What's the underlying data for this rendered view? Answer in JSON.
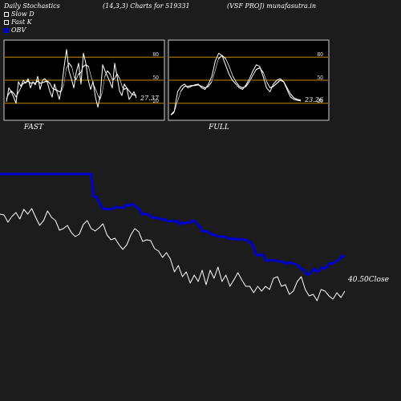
{
  "header": {
    "title": "Daily Stochastics",
    "params": "(14,3,3) Charts for 519331",
    "symbol": "(VSF PROJ) munafasutra.in"
  },
  "legend": [
    {
      "label": "Slow  D",
      "icon": "open-square",
      "color": "#ffffff"
    },
    {
      "label": "Fast K",
      "icon": "open-square",
      "color": "#ffffff"
    },
    {
      "label": "OBV",
      "icon": "filled-square",
      "color": "#0000cc"
    }
  ],
  "colors": {
    "background": "#1c1c1c",
    "panel": "#000000",
    "gridline": "#c88a00",
    "price_line": "#ffffff",
    "obv_line": "#0000cc"
  },
  "panels": {
    "fast": {
      "label": "FAST",
      "last_value": "27.37",
      "ticks": [
        "80",
        "50",
        "20"
      ]
    },
    "full": {
      "label": "FULL",
      "last_value": "23.26",
      "ticks": [
        "80",
        "50",
        "20"
      ]
    }
  },
  "close_label": "40.50Close",
  "chart_data": [
    {
      "type": "line",
      "name": "FAST",
      "ylim": [
        0,
        100
      ],
      "gridlines": [
        80,
        50,
        20
      ],
      "series": [
        {
          "name": "Fast K",
          "values": [
            22,
            40,
            35,
            28,
            20,
            48,
            42,
            50,
            46,
            52,
            40,
            48,
            44,
            55,
            38,
            50,
            52,
            47,
            36,
            28,
            45,
            35,
            25,
            42,
            68,
            90,
            62,
            52,
            40,
            60,
            72,
            45,
            85,
            72,
            50,
            38,
            48,
            28,
            15,
            30,
            70,
            62,
            55,
            48,
            40,
            72,
            55,
            36,
            30,
            45,
            40,
            25,
            30,
            35,
            27
          ]
        },
        {
          "name": "Slow D",
          "values": [
            25,
            32,
            36,
            33,
            28,
            34,
            40,
            46,
            47,
            49,
            46,
            47,
            46,
            49,
            46,
            47,
            48,
            49,
            46,
            40,
            38,
            37,
            35,
            36,
            45,
            65,
            72,
            68,
            55,
            50,
            58,
            60,
            68,
            70,
            68,
            56,
            45,
            38,
            30,
            25,
            35,
            55,
            62,
            58,
            50,
            52,
            58,
            52,
            42,
            38,
            40,
            36,
            32,
            31,
            30
          ]
        }
      ]
    },
    {
      "type": "line",
      "name": "FULL",
      "ylim": [
        0,
        100
      ],
      "gridlines": [
        80,
        50,
        20
      ],
      "series": [
        {
          "name": "Fast K",
          "values": [
            5,
            10,
            35,
            42,
            45,
            40,
            42,
            44,
            45,
            40,
            38,
            45,
            55,
            75,
            85,
            82,
            70,
            58,
            50,
            45,
            40,
            38,
            44,
            52,
            62,
            70,
            68,
            55,
            40,
            35,
            45,
            50,
            52,
            48,
            38,
            28,
            25,
            24,
            23
          ]
        },
        {
          "name": "Slow D",
          "values": [
            5,
            8,
            22,
            36,
            42,
            42,
            43,
            43,
            44,
            42,
            40,
            42,
            48,
            62,
            78,
            82,
            78,
            68,
            56,
            48,
            42,
            40,
            42,
            48,
            56,
            64,
            66,
            60,
            48,
            40,
            42,
            46,
            50,
            48,
            40,
            32,
            27,
            25,
            24
          ]
        }
      ]
    },
    {
      "type": "line",
      "name": "Price / OBV",
      "series": [
        {
          "name": "Close",
          "values": [
            118,
            117,
            108,
            115,
            120,
            112,
            124,
            118,
            125,
            114,
            104,
            110,
            122,
            114,
            110,
            98,
            100,
            104,
            95,
            90,
            93,
            105,
            110,
            100,
            97,
            101,
            106,
            92,
            86,
            88,
            80,
            74,
            80,
            92,
            100,
            96,
            84,
            86,
            85,
            75,
            72,
            64,
            70,
            62,
            46,
            54,
            40,
            46,
            32,
            42,
            34,
            48,
            30,
            48,
            38,
            52,
            34,
            42,
            28,
            36,
            45,
            36,
            28,
            28,
            20,
            28,
            22,
            28,
            24,
            38,
            40,
            28,
            30,
            18,
            22,
            34,
            40,
            24,
            16,
            18,
            10,
            24,
            22,
            16,
            12,
            20,
            14,
            22
          ]
        },
        {
          "name": "OBV",
          "values": [
            168,
            168,
            168,
            168,
            168,
            168,
            168,
            168,
            168,
            168,
            168,
            168,
            168,
            168,
            168,
            168,
            168,
            168,
            168,
            168,
            168,
            168,
            168,
            168,
            168,
            168,
            168,
            168,
            168,
            168,
            168,
            168,
            168,
            168,
            168,
            168,
            168,
            140,
            140,
            134,
            128,
            124,
            125,
            124,
            124,
            126,
            127,
            126,
            126,
            126,
            130,
            128,
            131,
            129,
            126,
            124,
            118,
            118,
            118,
            117,
            114,
            113,
            114,
            112,
            111,
            112,
            109,
            109,
            110,
            108,
            110,
            105,
            108,
            106,
            108,
            107,
            110,
            109,
            105,
            102,
            96,
            97,
            96,
            94,
            92,
            92,
            90,
            90,
            90,
            90,
            88,
            87,
            88,
            86,
            87,
            87,
            86,
            86,
            84,
            82,
            78,
            68,
            66,
            68,
            66,
            60,
            60,
            61,
            60,
            60,
            59,
            59,
            58,
            56,
            58,
            57,
            56,
            55,
            52,
            50,
            48,
            43,
            43,
            47,
            50,
            46,
            48,
            52,
            50,
            52,
            57,
            56,
            58,
            60,
            62,
            66,
            65
          ]
        }
      ],
      "last_close": 40.5
    }
  ]
}
